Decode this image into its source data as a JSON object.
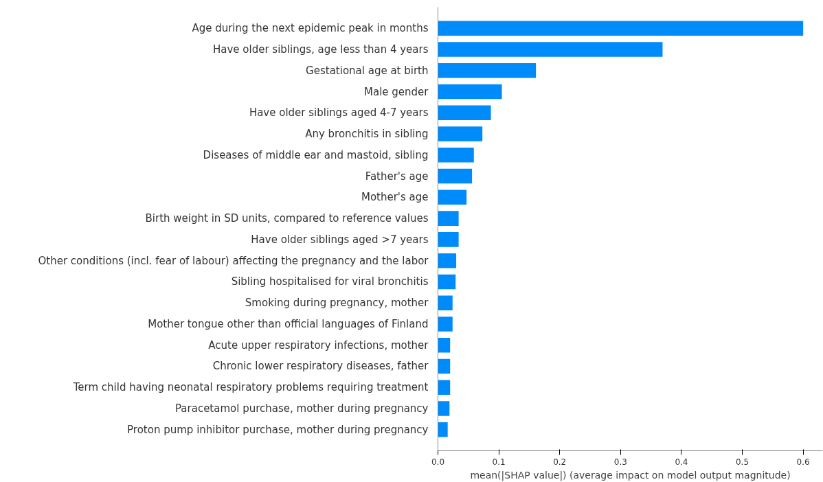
{
  "chart_data": {
    "type": "bar",
    "orientation": "horizontal",
    "xlabel": "mean(|SHAP value|) (average impact on model output magnitude)",
    "categories": [
      "Age during the next epidemic peak in months",
      "Have older siblings, age less than 4 years",
      "Gestational age at birth",
      "Male gender",
      "Have older siblings aged 4-7 years",
      "Any bronchitis in sibling",
      "Diseases of middle ear and mastoid, sibling",
      "Father's age",
      "Mother's age",
      "Birth weight in SD units, compared to reference values",
      "Have older siblings aged >7 years",
      "Other conditions (incl. fear of labour) affecting the pregnancy and the labor",
      "Sibling hospitalised for viral bronchitis",
      "Smoking during pregnancy, mother",
      "Mother tongue other than official languages of Finland",
      "Acute upper respiratory infections, mother",
      "Chronic lower respiratory diseases, father",
      "Term child having neonatal respiratory problems requiring treatment",
      "Paracetamol purchase, mother during pregnancy",
      "Proton pump inhibitor purchase, mother during pregnancy"
    ],
    "values": [
      0.6,
      0.369,
      0.161,
      0.105,
      0.087,
      0.073,
      0.059,
      0.056,
      0.047,
      0.034,
      0.034,
      0.03,
      0.029,
      0.024,
      0.024,
      0.02,
      0.02,
      0.02,
      0.019,
      0.016
    ],
    "color": "#008bfb",
    "xlim": [
      0,
      0.632
    ],
    "xticks": [
      {
        "value": 0,
        "label": "0.0"
      },
      0.1,
      0.2,
      0.3,
      0.4,
      0.5,
      0.6
    ],
    "grid": false
  }
}
